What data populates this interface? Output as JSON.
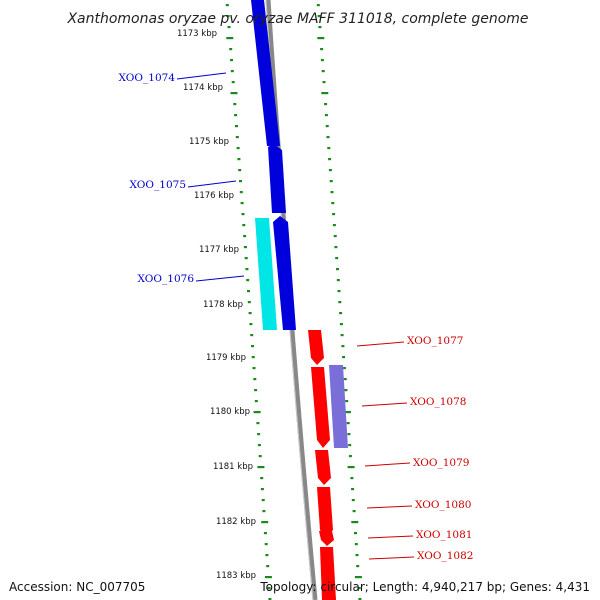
{
  "title": "Xanthomonas oryzae pv. oryzae MAFF 311018, complete genome",
  "footer": {
    "accession": "Accession: NC_007705",
    "topology": "Topology: circular; Length: 4,940,217 bp; Genes: 4,431"
  },
  "ticks": [
    "1173 kbp",
    "1174 kbp",
    "1175 kbp",
    "1176 kbp",
    "1177 kbp",
    "1178 kbp",
    "1179 kbp",
    "1180 kbp",
    "1181 kbp",
    "1182 kbp",
    "1183 kbp"
  ],
  "genes": [
    {
      "name": "XOO_1074",
      "strand": "forward",
      "color": "#0000cc"
    },
    {
      "name": "XOO_1075",
      "strand": "forward",
      "color": "#0000cc"
    },
    {
      "name": "XOO_1076",
      "strand": "forward",
      "color": "#0000cc"
    },
    {
      "name": "XOO_1077",
      "strand": "reverse",
      "color": "#cc0000"
    },
    {
      "name": "XOO_1078",
      "strand": "reverse",
      "color": "#cc0000"
    },
    {
      "name": "XOO_1079",
      "strand": "reverse",
      "color": "#cc0000"
    },
    {
      "name": "XOO_1080",
      "strand": "reverse",
      "color": "#cc0000"
    },
    {
      "name": "XOO_1081",
      "strand": "reverse",
      "color": "#cc0000"
    },
    {
      "name": "XOO_1082",
      "strand": "reverse",
      "color": "#cc0000"
    }
  ],
  "colors": {
    "forward_gene": "#0000dd",
    "reverse_gene": "#ff0000",
    "rna_forward": "#00e5e5",
    "rna_reverse": "#7a6fd8",
    "backbone": "#888888",
    "tick_marks": "#1a8a1a"
  }
}
